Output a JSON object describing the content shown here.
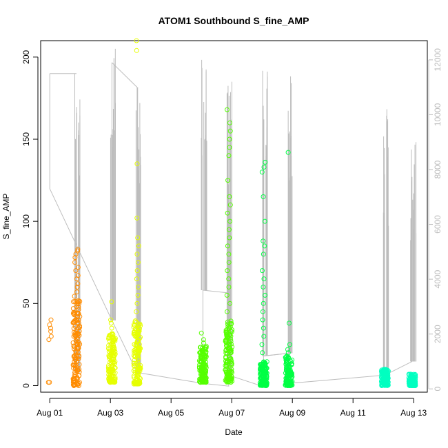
{
  "chart_data": {
    "type": "scatter",
    "title": "ATOM1 Southbound S_fine_AMP",
    "xlabel": "Date",
    "ylabel": "S_fine_AMP",
    "x_ticks": [
      "Aug 01",
      "Aug 03",
      "Aug 05",
      "Aug 07",
      "Aug 09",
      "Aug 11",
      "Aug 13"
    ],
    "x_tick_days": [
      1,
      3,
      5,
      7,
      9,
      11,
      13
    ],
    "xlim": [
      0.7,
      13.45
    ],
    "ylim": [
      -4,
      210
    ],
    "y_ticks": [
      0,
      50,
      100,
      150,
      200
    ],
    "y2lim": [
      -120,
      12700
    ],
    "y2_ticks": [
      0,
      2000,
      4000,
      6000,
      8000,
      10000,
      12000
    ],
    "grid": false,
    "legend": "none",
    "colors": {
      "Aug 01-02": "#ff8c00",
      "Aug 03-04": "#e6ff00",
      "Aug 06-07": "#55ff00",
      "Aug 08-09": "#00ff44",
      "Aug 12-13": "#00ffc0",
      "secondary_line": "#bdbdbd"
    },
    "series": [
      {
        "day": 1.0,
        "color": "#ff8c00",
        "dense": [],
        "points": [
          2,
          2,
          28,
          30,
          33,
          35,
          37,
          40
        ]
      },
      {
        "day": 1.88,
        "color": "#ff8c00",
        "dense": [
          0,
          55
        ],
        "points": [
          57,
          60,
          62,
          65,
          67,
          70,
          72,
          75,
          78,
          80,
          82,
          83
        ]
      },
      {
        "day": 3.05,
        "color": "#e6ff00",
        "dense": [
          2,
          32
        ],
        "points": [
          35,
          38,
          40,
          51
        ]
      },
      {
        "day": 3.88,
        "color": "#e6ff00",
        "dense": [
          1,
          40
        ],
        "points": [
          45,
          50,
          55,
          60,
          65,
          70,
          75,
          80,
          85,
          90,
          102,
          135,
          204,
          210
        ]
      },
      {
        "day": 6.05,
        "color": "#55ff00",
        "dense": [
          2,
          24
        ],
        "points": [
          26,
          28,
          32
        ]
      },
      {
        "day": 6.9,
        "color": "#55ff00",
        "dense": [
          2,
          40
        ],
        "points": [
          45,
          50,
          55,
          60,
          65,
          70,
          75,
          80,
          85,
          90,
          95,
          100,
          105,
          110,
          115,
          125,
          140,
          145,
          150,
          155,
          160,
          168
        ]
      },
      {
        "day": 8.05,
        "color": "#00ff44",
        "dense": [
          0,
          15
        ],
        "points": [
          20,
          25,
          30,
          35,
          40,
          45,
          50,
          55,
          60,
          65,
          70,
          80,
          85,
          88,
          100,
          115,
          130,
          133,
          136
        ]
      },
      {
        "day": 8.88,
        "color": "#00ff44",
        "dense": [
          0,
          18
        ],
        "points": [
          20,
          22,
          25,
          38,
          142
        ]
      },
      {
        "day": 12.05,
        "color": "#00ffc0",
        "dense": [
          0,
          10
        ],
        "points": []
      },
      {
        "day": 12.95,
        "color": "#00ffc0",
        "dense": [
          0,
          7
        ],
        "points": []
      }
    ],
    "secondary_y": {
      "color": "#bdbdbd",
      "path": [
        [
          1.0,
          11500
        ],
        [
          1.0,
          7300
        ],
        [
          3.05,
          2500
        ],
        [
          3.05,
          11900
        ],
        [
          3.05,
          2500
        ],
        [
          3.88,
          600
        ],
        [
          3.88,
          11000
        ],
        [
          3.88,
          600
        ],
        [
          6.05,
          200
        ],
        [
          6.05,
          3600
        ],
        [
          6.05,
          200
        ],
        [
          6.9,
          100
        ],
        [
          6.9,
          500
        ],
        [
          8.05,
          80
        ],
        [
          8.05,
          1200
        ],
        [
          8.88,
          1300
        ],
        [
          8.88,
          200
        ],
        [
          12.05,
          500
        ],
        [
          12.95,
          1000
        ]
      ],
      "connectors": [
        [
          [
            1.0,
            11500
          ],
          [
            1.88,
            11500
          ]
        ],
        [
          [
            3.05,
            11900
          ],
          [
            3.88,
            11000
          ]
        ],
        [
          [
            6.05,
            3600
          ],
          [
            6.9,
            3500
          ]
        ],
        [
          [
            8.05,
            1200
          ],
          [
            8.88,
            1300
          ]
        ]
      ],
      "spikes": [
        {
          "day": 1.88,
          "max": 11500,
          "base": 600
        },
        {
          "day": 3.05,
          "max": 12400,
          "base": 2500
        },
        {
          "day": 3.88,
          "max": 11000,
          "base": 600
        },
        {
          "day": 6.05,
          "max": 12000,
          "base": 3600
        },
        {
          "day": 6.9,
          "max": 11200,
          "base": 500
        },
        {
          "day": 8.05,
          "max": 11600,
          "base": 1200
        },
        {
          "day": 8.88,
          "max": 11400,
          "base": 1300
        },
        {
          "day": 12.05,
          "max": 10200,
          "base": 500
        },
        {
          "day": 12.95,
          "max": 9000,
          "base": 1000
        }
      ]
    }
  }
}
